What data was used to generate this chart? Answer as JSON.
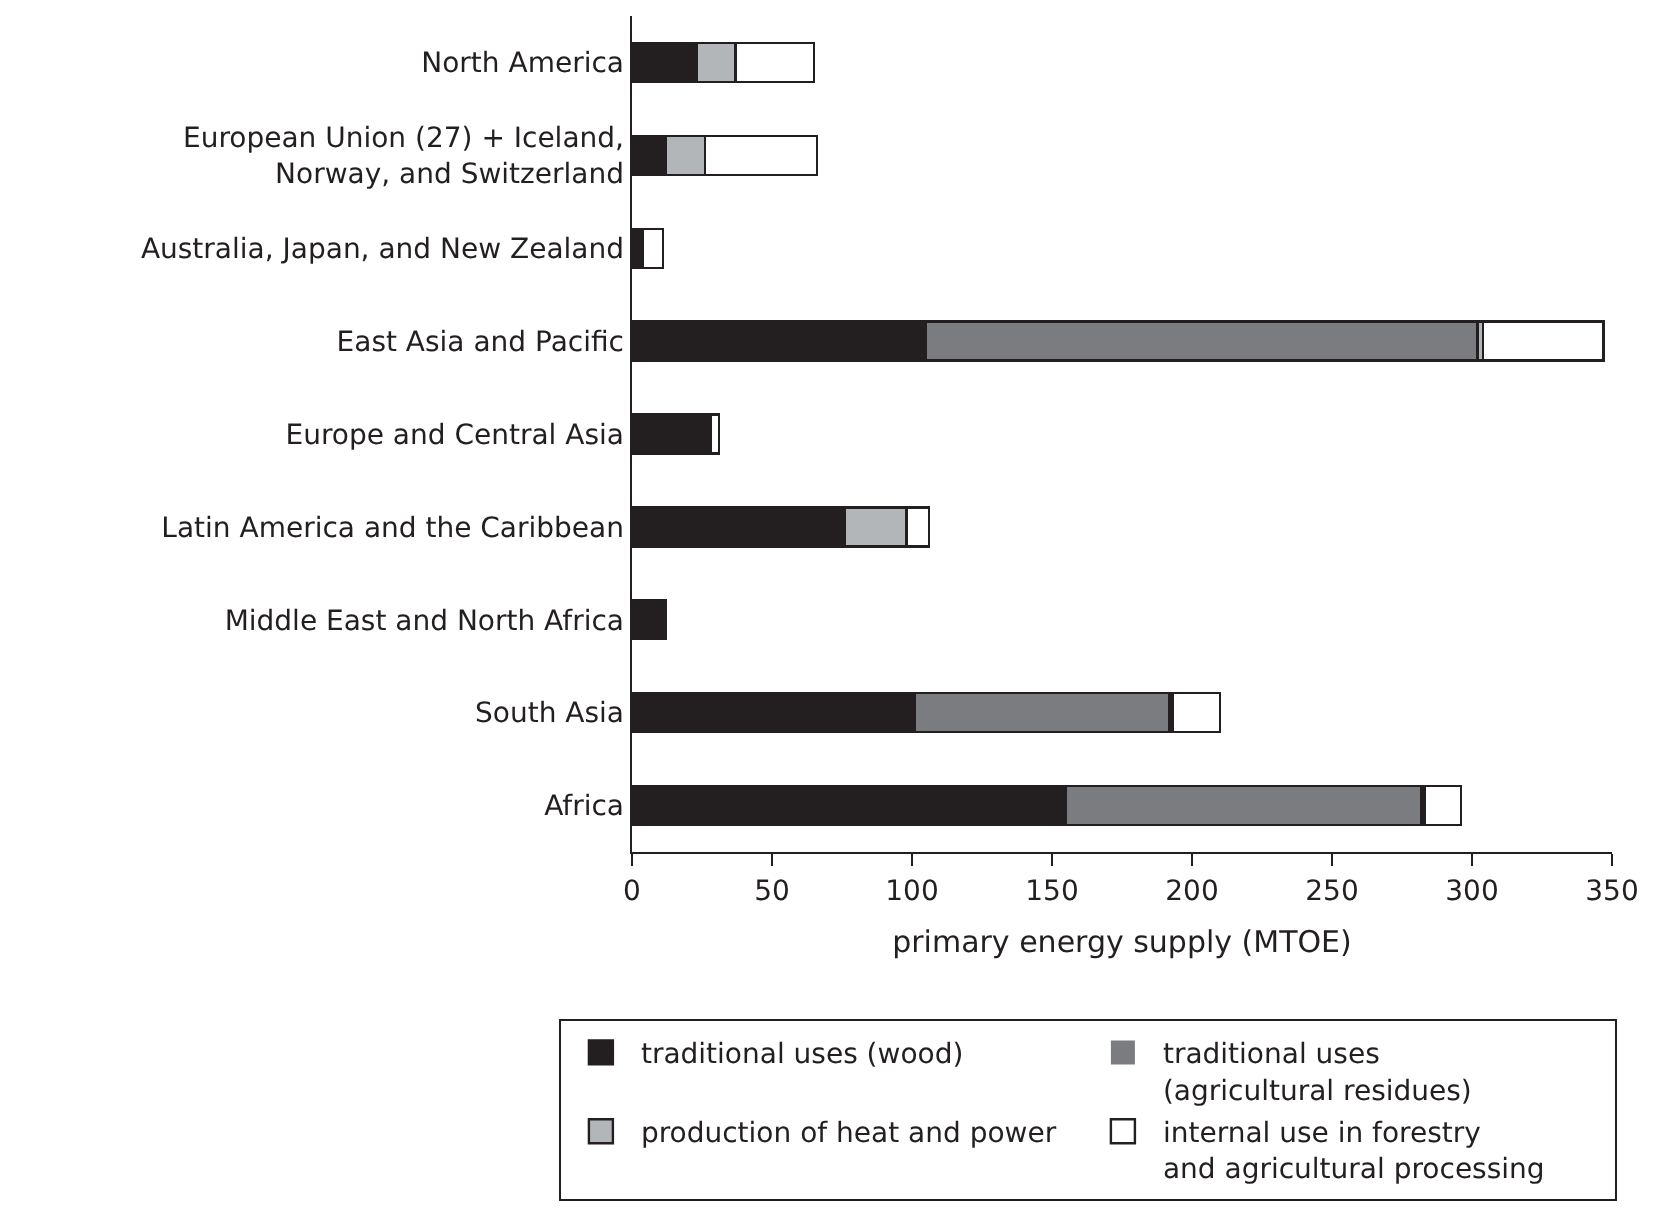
{
  "chart_data": {
    "type": "bar",
    "orientation": "horizontal",
    "stacked": true,
    "xlabel": "primary energy supply (MTOE)",
    "categories": [
      "North America",
      "European Union (27) + Iceland,\nNorway, and Switzerland",
      "Australia, Japan, and New Zealand",
      "East Asia and Pacific",
      "Europe and Central Asia",
      "Latin America and the Caribbean",
      "Middle East and North Africa",
      "South Asia",
      "Africa"
    ],
    "series": [
      {
        "name": "traditional uses (wood)",
        "color": "#231f20",
        "values": [
          23,
          12,
          4,
          105,
          26,
          76,
          12,
          101,
          155
        ]
      },
      {
        "name": "traditional uses\n(agricultural residues)",
        "color": "#7b7c80",
        "values": [
          0,
          0,
          0,
          197,
          1,
          0,
          0,
          91,
          127
        ]
      },
      {
        "name": "production of heat and power",
        "color": "#b3b6b8",
        "values": [
          14,
          14,
          0,
          2,
          1,
          22,
          0,
          1,
          1
        ]
      },
      {
        "name": "internal use in forestry\nand agricultural processing",
        "color": "#ffffff",
        "values": [
          28,
          40,
          7,
          43,
          3,
          8,
          0,
          17,
          13
        ]
      }
    ],
    "xlim": [
      0,
      350
    ],
    "xticks": [
      0,
      50,
      100,
      150,
      200,
      250,
      300,
      350
    ],
    "grid": false,
    "legend": "bottom"
  }
}
